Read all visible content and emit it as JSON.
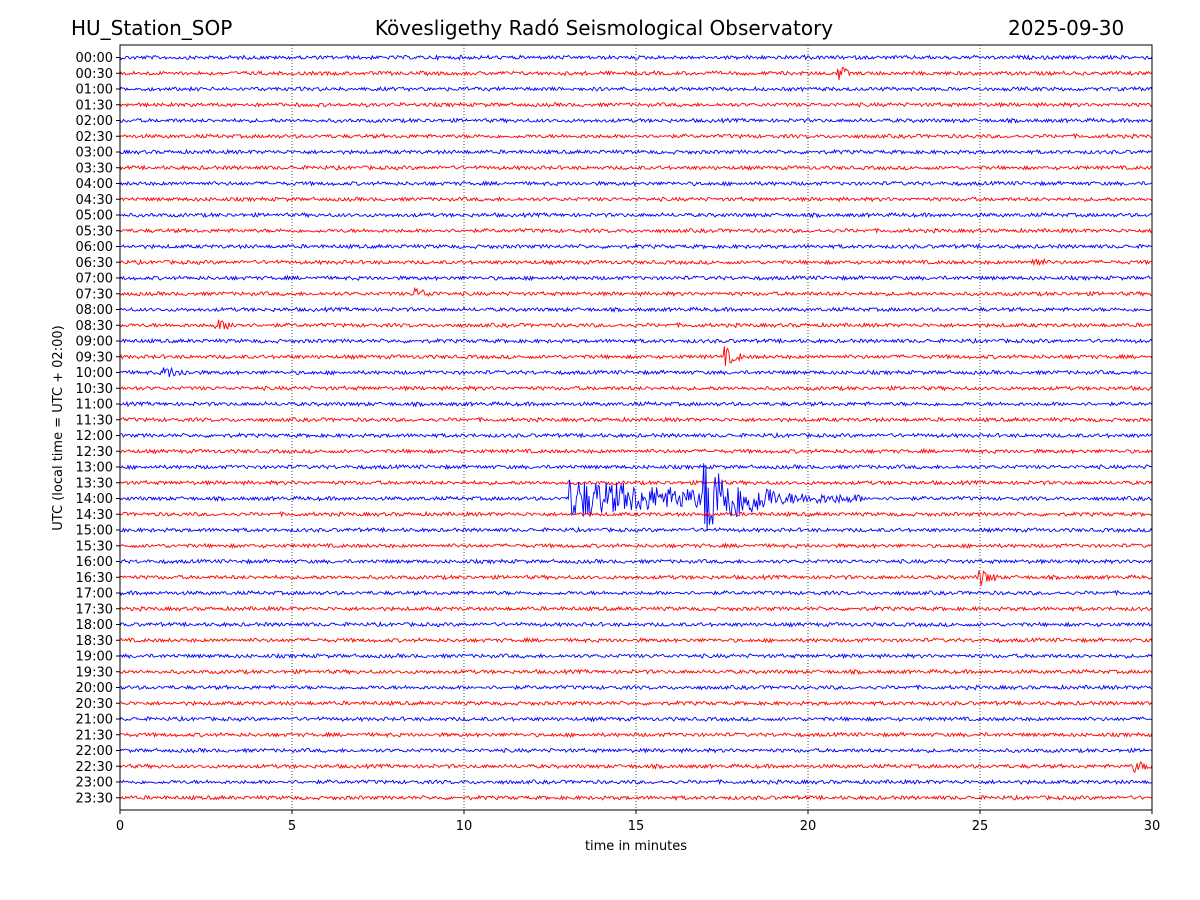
{
  "header": {
    "station": "HU_Station_SOP",
    "title": "Kövesligethy Radó Seismological Observatory",
    "date": "2025-09-30"
  },
  "chart_data": {
    "type": "line",
    "subtype": "helicorder",
    "xlabel": "time in minutes",
    "ylabel": "UTC (local time = UTC + 02:00)",
    "xlim": [
      0,
      30
    ],
    "xticks": [
      0,
      5,
      10,
      15,
      20,
      25,
      30
    ],
    "grid": "vertical dotted lines at 5-minute ticks",
    "colors": [
      "#0000ff",
      "#ff0000"
    ],
    "rows": [
      "00:00",
      "00:30",
      "01:00",
      "01:30",
      "02:00",
      "02:30",
      "03:00",
      "03:30",
      "04:00",
      "04:30",
      "05:00",
      "05:30",
      "06:00",
      "06:30",
      "07:00",
      "07:30",
      "08:00",
      "08:30",
      "09:00",
      "09:30",
      "10:00",
      "10:30",
      "11:00",
      "11:30",
      "12:00",
      "12:30",
      "13:00",
      "13:30",
      "14:00",
      "14:30",
      "15:00",
      "15:30",
      "16:00",
      "16:30",
      "17:00",
      "17:30",
      "18:00",
      "18:30",
      "19:00",
      "19:30",
      "20:00",
      "20:30",
      "21:00",
      "21:30",
      "22:00",
      "22:30",
      "23:00",
      "23:30"
    ],
    "events": [
      {
        "row": "00:30",
        "minute": 20.9,
        "amplitude": 1.5,
        "duration_min": 0.3
      },
      {
        "row": "06:30",
        "minute": 26.5,
        "amplitude": 1.0,
        "duration_min": 0.4
      },
      {
        "row": "07:30",
        "minute": 8.6,
        "amplitude": 0.9,
        "duration_min": 0.6
      },
      {
        "row": "08:30",
        "minute": 2.8,
        "amplitude": 1.0,
        "duration_min": 0.8
      },
      {
        "row": "09:30",
        "minute": 17.6,
        "amplitude": 1.6,
        "duration_min": 0.5
      },
      {
        "row": "10:00",
        "minute": 1.3,
        "amplitude": 1.0,
        "duration_min": 0.8
      },
      {
        "row": "14:00",
        "minute": 13.1,
        "amplitude": 4.0,
        "duration_min": 8.5
      },
      {
        "row": "14:00",
        "minute": 17.0,
        "amplitude": 7.0,
        "duration_min": 2.0
      },
      {
        "row": "16:30",
        "minute": 25.0,
        "amplitude": 1.6,
        "duration_min": 0.5
      },
      {
        "row": "22:30",
        "minute": 29.5,
        "amplitude": 1.0,
        "duration_min": 0.5
      }
    ]
  }
}
